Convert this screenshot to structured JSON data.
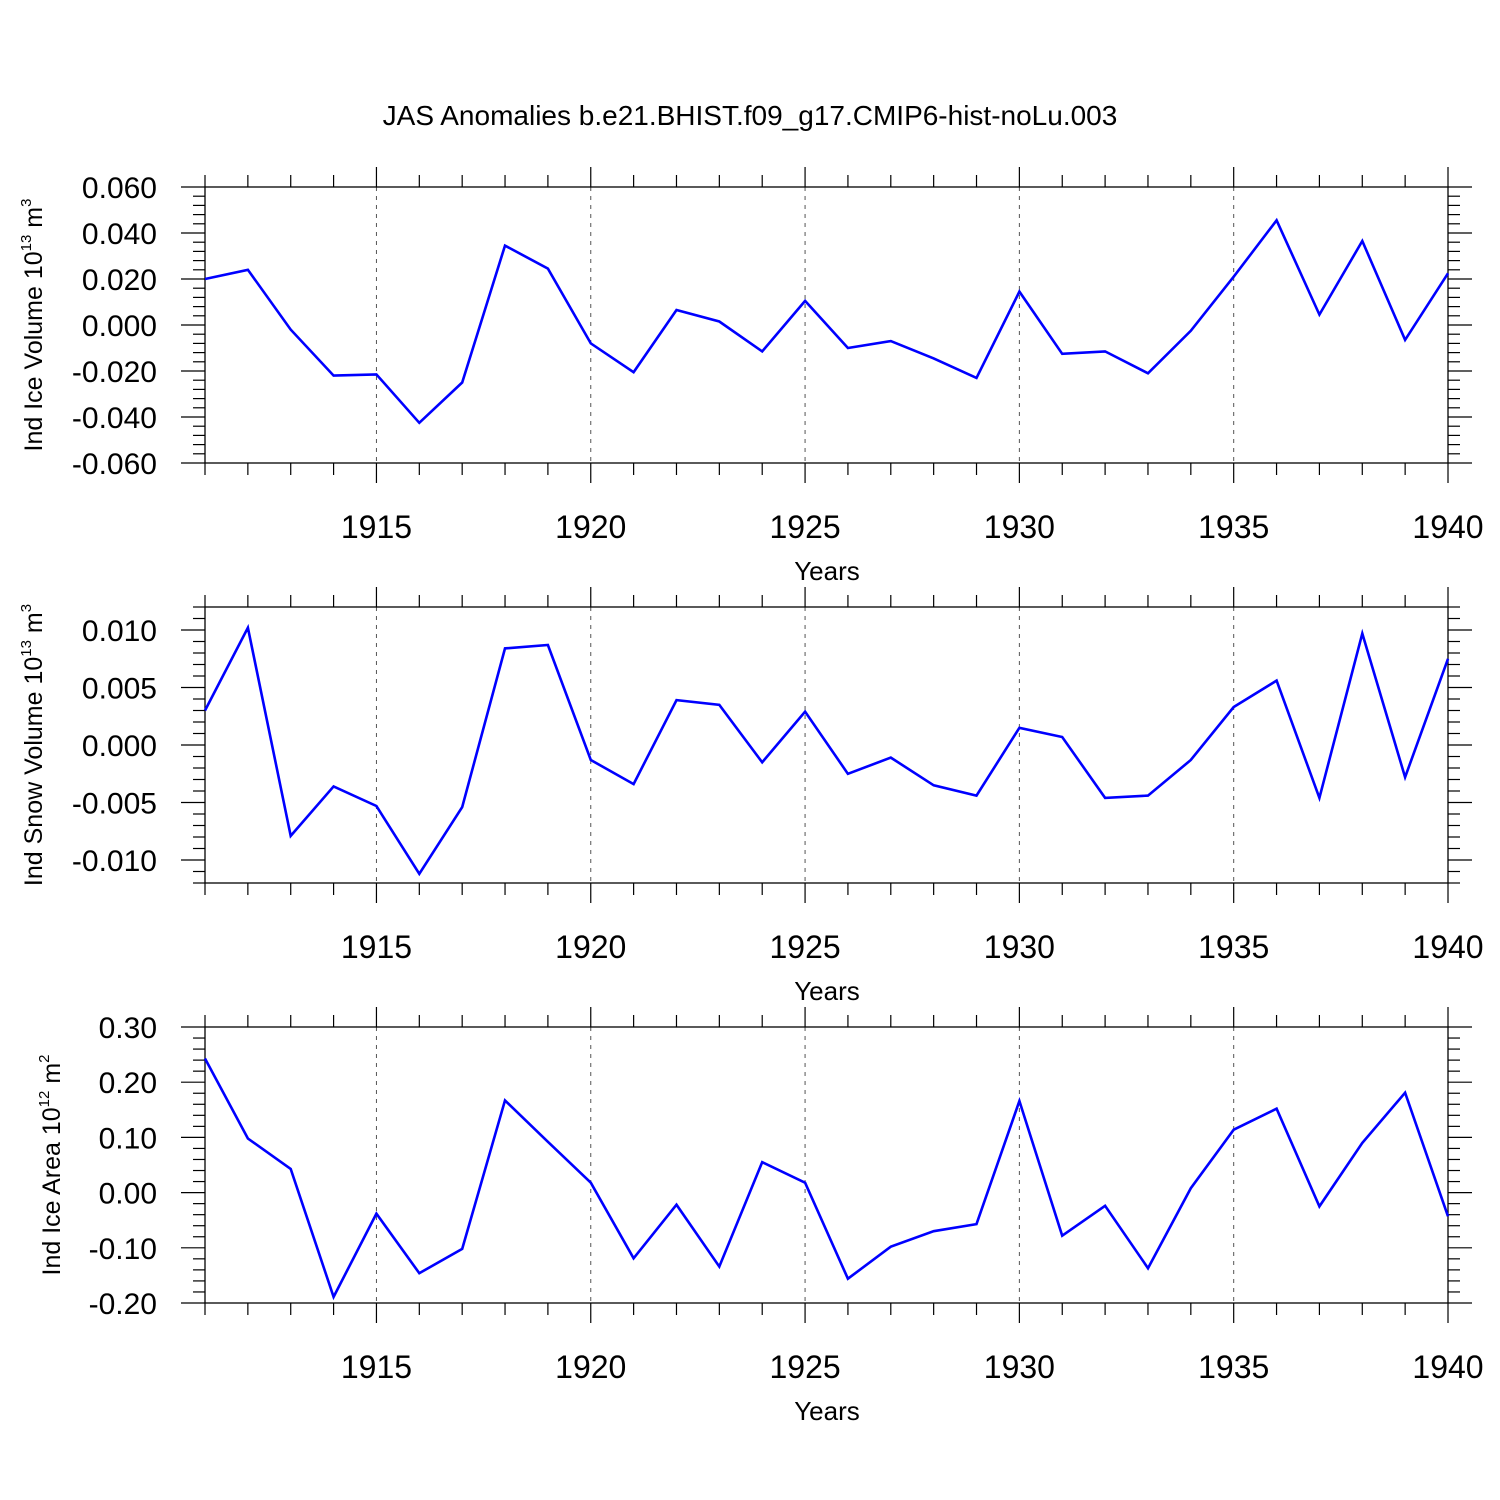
{
  "title": "JAS Anomalies b.e21.BHIST.f09_g17.CMIP6-hist-noLu.003",
  "line_color": "#0000ff",
  "chart_data": [
    {
      "type": "line",
      "title": "",
      "xlabel": "Years",
      "ylabel": "Ind Ice Volume 10",
      "ylabel_exponent": "13",
      "ylabel_unit": "m",
      "ylabel_unit_exponent": "3",
      "xlim": [
        1911,
        1940
      ],
      "ylim": [
        -0.06,
        0.06
      ],
      "grid": "vertical dashed at labeled years",
      "x_ticks": [
        "1915",
        "1920",
        "1925",
        "1930",
        "1935",
        "1940"
      ],
      "y_ticks": [
        "-0.060",
        "-0.040",
        "-0.020",
        "0.000",
        "0.020",
        "0.040",
        "0.060"
      ],
      "series": [
        {
          "name": "Ind Ice Volume",
          "x": [
            1911,
            1912,
            1913,
            1914,
            1915,
            1916,
            1917,
            1918,
            1919,
            1920,
            1921,
            1922,
            1923,
            1924,
            1925,
            1926,
            1927,
            1928,
            1929,
            1930,
            1931,
            1932,
            1933,
            1934,
            1935,
            1936,
            1937,
            1938,
            1939,
            1940
          ],
          "values": [
            0.02,
            0.024,
            -0.002,
            -0.022,
            -0.0215,
            -0.0425,
            -0.025,
            0.0345,
            0.0245,
            -0.008,
            -0.0205,
            0.0065,
            0.0015,
            -0.0115,
            0.0105,
            -0.01,
            -0.007,
            -0.0145,
            -0.023,
            0.0145,
            -0.0125,
            -0.0115,
            -0.021,
            -0.0025,
            0.021,
            0.0455,
            0.0045,
            0.0365,
            -0.0065,
            0.0225
          ]
        }
      ]
    },
    {
      "type": "line",
      "title": "",
      "xlabel": "Years",
      "ylabel": "Ind Snow Volume 10",
      "ylabel_exponent": "13",
      "ylabel_unit": "m",
      "ylabel_unit_exponent": "3",
      "xlim": [
        1911,
        1940
      ],
      "ylim": [
        -0.012,
        0.012
      ],
      "grid": "vertical dashed at labeled years",
      "x_ticks": [
        "1915",
        "1920",
        "1925",
        "1930",
        "1935",
        "1940"
      ],
      "y_ticks": [
        "-0.010",
        "-0.005",
        "0.000",
        "0.005",
        "0.010"
      ],
      "series": [
        {
          "name": "Ind Snow Volume",
          "x": [
            1911,
            1912,
            1913,
            1914,
            1915,
            1916,
            1917,
            1918,
            1919,
            1920,
            1921,
            1922,
            1923,
            1924,
            1925,
            1926,
            1927,
            1928,
            1929,
            1930,
            1931,
            1932,
            1933,
            1934,
            1935,
            1936,
            1937,
            1938,
            1939,
            1940
          ],
          "values": [
            0.003,
            0.0102,
            -0.0079,
            -0.0036,
            -0.0053,
            -0.0112,
            -0.0054,
            0.0084,
            0.0087,
            -0.0013,
            -0.0034,
            0.0039,
            0.0035,
            -0.0015,
            0.0029,
            -0.0025,
            -0.0011,
            -0.0035,
            -0.0044,
            0.0015,
            0.0007,
            -0.0046,
            -0.0044,
            -0.0013,
            0.0033,
            0.0056,
            -0.0046,
            0.0097,
            -0.0028,
            0.0075
          ]
        }
      ]
    },
    {
      "type": "line",
      "title": "",
      "xlabel": "Years",
      "ylabel": "Ind Ice Area 10",
      "ylabel_exponent": "12",
      "ylabel_unit": "m",
      "ylabel_unit_exponent": "2",
      "xlim": [
        1911,
        1940
      ],
      "ylim": [
        -0.2,
        0.3
      ],
      "grid": "vertical dashed at labeled years",
      "x_ticks": [
        "1915",
        "1920",
        "1925",
        "1930",
        "1935",
        "1940"
      ],
      "y_ticks": [
        "-0.20",
        "-0.10",
        "0.00",
        "0.10",
        "0.20",
        "0.30"
      ],
      "series": [
        {
          "name": "Ind Ice Area",
          "x": [
            1911,
            1912,
            1913,
            1914,
            1915,
            1916,
            1917,
            1918,
            1919,
            1920,
            1921,
            1922,
            1923,
            1924,
            1925,
            1926,
            1927,
            1928,
            1929,
            1930,
            1931,
            1932,
            1933,
            1934,
            1935,
            1936,
            1937,
            1938,
            1939,
            1940
          ],
          "values": [
            0.243,
            0.098,
            0.043,
            -0.189,
            -0.038,
            -0.146,
            -0.102,
            0.167,
            0.092,
            0.018,
            -0.119,
            -0.022,
            -0.134,
            0.055,
            0.018,
            -0.156,
            -0.098,
            -0.07,
            -0.057,
            0.166,
            -0.078,
            -0.024,
            -0.137,
            0.008,
            0.114,
            0.152,
            -0.025,
            0.09,
            0.181,
            -0.043
          ]
        }
      ]
    }
  ]
}
